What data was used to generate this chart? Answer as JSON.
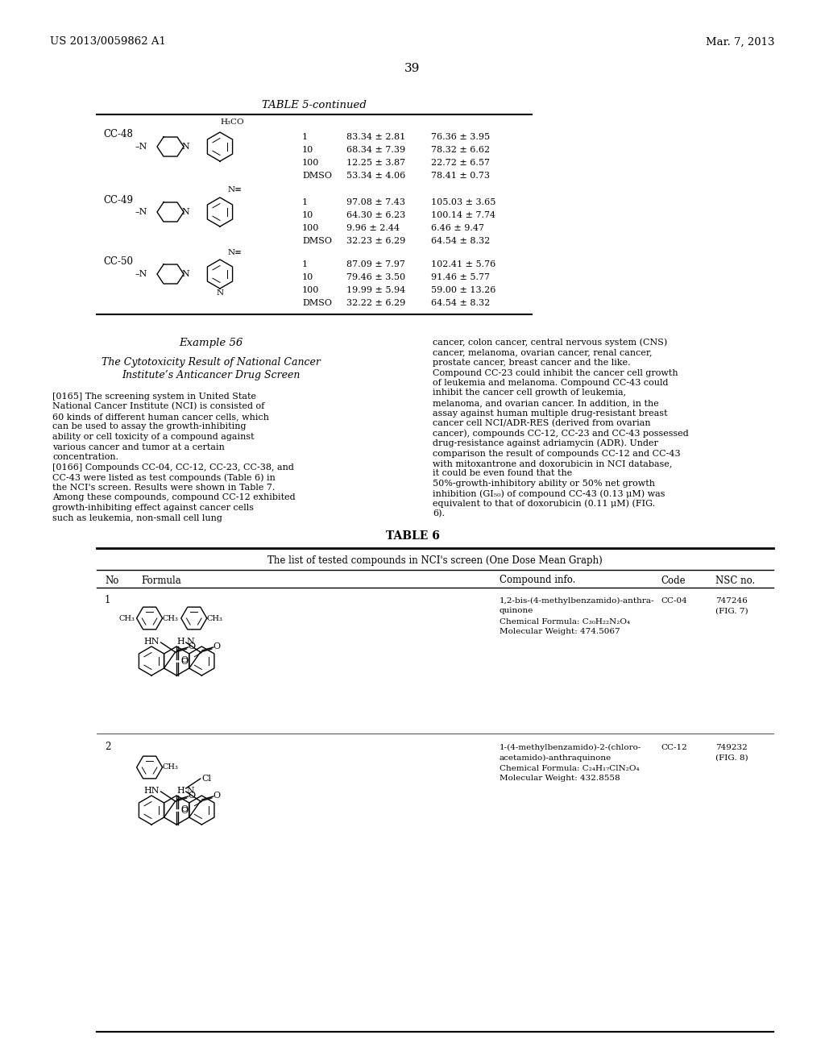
{
  "bg_color": "#ffffff",
  "header_left": "US 2013/0059862 A1",
  "header_right": "Mar. 7, 2013",
  "page_number": "39",
  "table5_title": "TABLE 5-continued",
  "table5_rows": [
    {
      "code": "CC-48",
      "doses": [
        "1",
        "10",
        "100",
        "DMSO"
      ],
      "col1": [
        "83.34 ± 2.81",
        "68.34 ± 7.39",
        "12.25 ± 3.87",
        "53.34 ± 4.06"
      ],
      "col2": [
        "76.36 ± 3.95",
        "78.32 ± 6.62",
        "22.72 ± 6.57",
        "78.41 ± 0.73"
      ]
    },
    {
      "code": "CC-49",
      "doses": [
        "1",
        "10",
        "100",
        "DMSO"
      ],
      "col1": [
        "97.08 ± 7.43",
        "64.30 ± 6.23",
        "9.96 ± 2.44",
        "32.23 ± 6.29"
      ],
      "col2": [
        "105.03 ± 3.65",
        "100.14 ± 7.74",
        "6.46 ± 9.47",
        "64.54 ± 8.32"
      ]
    },
    {
      "code": "CC-50",
      "doses": [
        "1",
        "10",
        "100",
        "DMSO"
      ],
      "col1": [
        "87.09 ± 7.97",
        "79.46 ± 3.50",
        "19.99 ± 5.94",
        "32.22 ± 6.29"
      ],
      "col2": [
        "102.41 ± 5.76",
        "91.46 ± 5.77",
        "59.00 ± 13.26",
        "64.54 ± 8.32"
      ]
    }
  ],
  "example_title": "Example 56",
  "left_para1_tag": "[0165]",
  "left_para1": "The screening system in United State National Cancer Institute (NCI) is consisted of 60 kinds of different human cancer cells, which can be used to assay the growth-inhibiting ability or cell toxicity of a compound against various cancer and tumor at a certain concentration.",
  "left_para2_tag": "[0166]",
  "left_para2": "Compounds CC-04, CC-12, CC-23, CC-38, and CC-43 were listed as test compounds (Table 6) in the NCI's screen. Results were shown in Table 7. Among these compounds, compound CC-12 exhibited growth-inhibiting effect against cancer cells such as leukemia, non-small cell lung",
  "right_para": "cancer, colon cancer, central nervous system (CNS) cancer, melanoma, ovarian cancer, renal cancer, prostate cancer, breast cancer and the like. Compound CC-23 could inhibit the cancer cell growth of leukemia and melanoma. Compound CC-43 could inhibit the cancer cell growth of leukemia, melanoma, and ovarian cancer. In addition, in the assay against human multiple drug-resistant breast cancer cell NCI/ADR-RES (derived from ovarian cancer), compounds CC-12, CC-23 and CC-43 possessed drug-resistance against adriamycin (ADR). Under comparison the result of compounds CC-12 and CC-43 with mitoxantrone and doxorubicin in NCI database, it could be even found that the 50%-growth-inhibitory ability or 50% net growth inhibition (GI₅₀) of compound CC-43 (0.13 μM) was equivalent to that of doxorubicin (0.11 μM) (FIG. 6).",
  "table6_title": "TABLE 6",
  "table6_subtitle": "The list of tested compounds in NCI's screen (One Dose Mean Graph)",
  "info1_lines": [
    "1,2-bis-(4-methylbenzamido)-anthra-",
    "quinone",
    "Chemical Formula: C₃₀H₂₂N₂O₄",
    "Molecular Weight: 474.5067"
  ],
  "info2_lines": [
    "1-(4-methylbenzamido)-2-(chloro-",
    "acetamido)-anthraquinone",
    "Chemical Formula: C₂₄H₁₇ClN₂O₄",
    "Molecular Weight: 432.8558"
  ]
}
